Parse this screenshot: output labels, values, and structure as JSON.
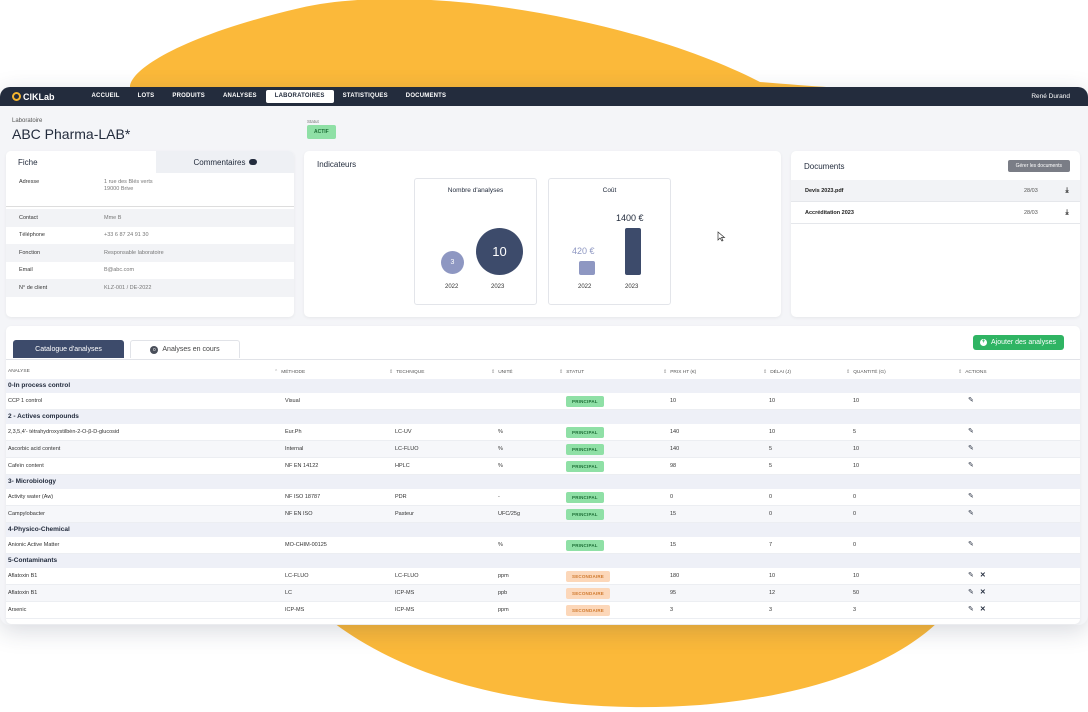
{
  "app": {
    "brand": "ClKLab",
    "nav": [
      "ACCUEIL",
      "LOTS",
      "PRODUITS",
      "ANALYSES",
      "LABORATOIRES",
      "STATISTIQUES",
      "DOCUMENTS"
    ],
    "active_nav": "LABORATOIRES",
    "user": "René Durand"
  },
  "header": {
    "small_label": "Laboratoire",
    "title": "ABC Pharma-LAB*",
    "status_label": "Statut",
    "status_value": "ACTIF"
  },
  "fiche": {
    "tab_fiche": "Fiche",
    "tab_comments": "Commentaires",
    "address_label": "Adresse",
    "address_line1": "1 rue des Blés verts",
    "address_line2": "19000 Brive",
    "fields": [
      {
        "k": "Contact",
        "v": "Mme B"
      },
      {
        "k": "Téléphone",
        "v": "+33 6 87 24 91 30"
      },
      {
        "k": "Fonction",
        "v": "Responsable laboratoire"
      },
      {
        "k": "Email",
        "v": "B@abc.com"
      },
      {
        "k": "N° de client",
        "v": "KLZ-001 / DE-2022"
      }
    ]
  },
  "indicateurs": {
    "title": "Indicateurs",
    "analyses": {
      "title": "Nombre d'analyses",
      "values": [
        {
          "year": "2022",
          "value": "3"
        },
        {
          "year": "2023",
          "value": "10"
        }
      ]
    },
    "cout": {
      "title": "Coût",
      "values": [
        {
          "year": "2022",
          "value": "420 €",
          "amount": 420
        },
        {
          "year": "2023",
          "value": "1400 €",
          "amount": 1400
        }
      ]
    }
  },
  "documents": {
    "title": "Documents",
    "button": "Gérer les documents",
    "items": [
      {
        "name": "Devis 2023.pdf",
        "date": "28/03"
      },
      {
        "name": "Accréditation 2023",
        "date": "28/03"
      }
    ]
  },
  "catalog": {
    "tab_active": "Catalogue d'analyses",
    "tab_inactive": "Analyses en cours",
    "tab_inactive_count": "0",
    "add_button": "Ajouter des analyses",
    "columns": [
      "ANALYSE",
      "MÉTHODE",
      "TECHNIQUE",
      "UNITÉ",
      "STATUT",
      "PRIX HT (€)",
      "DÉLAI (J)",
      "QUANTITÉ (G)",
      "ACTIONS"
    ],
    "groups": [
      {
        "name": "0-In process control",
        "rows": [
          {
            "analyse": "CCP 1 control",
            "methode": "Visual",
            "technique": "",
            "unite": "",
            "statut": "PRINCIPAL",
            "prix": "10",
            "delai": "10",
            "quantite": "10",
            "delete": false
          }
        ]
      },
      {
        "name": "2 - Actives compounds",
        "rows": [
          {
            "analyse": "2,3,5,4'- tétrahydroxystilbèn-2-O-β-D-glucosid",
            "methode": "Eur.Ph",
            "technique": "LC-UV",
            "unite": "%",
            "statut": "PRINCIPAL",
            "prix": "140",
            "delai": "10",
            "quantite": "5",
            "delete": false
          },
          {
            "analyse": "Ascorbic acid content",
            "methode": "Internal",
            "technique": "LC-FLUO",
            "unite": "%",
            "statut": "PRINCIPAL",
            "prix": "140",
            "delai": "5",
            "quantite": "10",
            "delete": false
          },
          {
            "analyse": "Cafeïn content",
            "methode": "NF EN 14122",
            "technique": "HPLC",
            "unite": "%",
            "statut": "PRINCIPAL",
            "prix": "98",
            "delai": "5",
            "quantite": "10",
            "delete": false
          }
        ]
      },
      {
        "name": "3- Microbiology",
        "rows": [
          {
            "analyse": "Activity water (Aw)",
            "methode": "NF ISO 18787",
            "technique": "PDR",
            "unite": "-",
            "statut": "PRINCIPAL",
            "prix": "0",
            "delai": "0",
            "quantite": "0",
            "delete": false
          },
          {
            "analyse": "Campylobacter",
            "methode": "NF EN ISO",
            "technique": "Pasteur",
            "unite": "UFC/25g",
            "statut": "PRINCIPAL",
            "prix": "15",
            "delai": "0",
            "quantite": "0",
            "delete": false
          }
        ]
      },
      {
        "name": "4-Physico-Chemical",
        "rows": [
          {
            "analyse": "Anionic Active Matter",
            "methode": "MO-CHIM-00125",
            "technique": "",
            "unite": "%",
            "statut": "PRINCIPAL",
            "prix": "15",
            "delai": "7",
            "quantite": "0",
            "delete": false
          }
        ]
      },
      {
        "name": "5-Contaminants",
        "rows": [
          {
            "analyse": "Aflatoxin B1",
            "methode": "LC-FLUO",
            "technique": "LC-FLUO",
            "unite": "ppm",
            "statut": "SECONDAIRE",
            "prix": "180",
            "delai": "10",
            "quantite": "10",
            "delete": true
          },
          {
            "analyse": "Aflatoxin B1",
            "methode": "LC",
            "technique": "ICP-MS",
            "unite": "ppb",
            "statut": "SECONDAIRE",
            "prix": "95",
            "delai": "12",
            "quantite": "50",
            "delete": true
          },
          {
            "analyse": "Arsenic",
            "methode": "ICP-MS",
            "technique": "ICP-MS",
            "unite": "ppm",
            "statut": "SECONDAIRE",
            "prix": "3",
            "delai": "3",
            "quantite": "3",
            "delete": true
          }
        ]
      }
    ]
  },
  "colors": {
    "accent": "#f5b52e",
    "navy": "#232c3d",
    "green": "#2fb463"
  }
}
